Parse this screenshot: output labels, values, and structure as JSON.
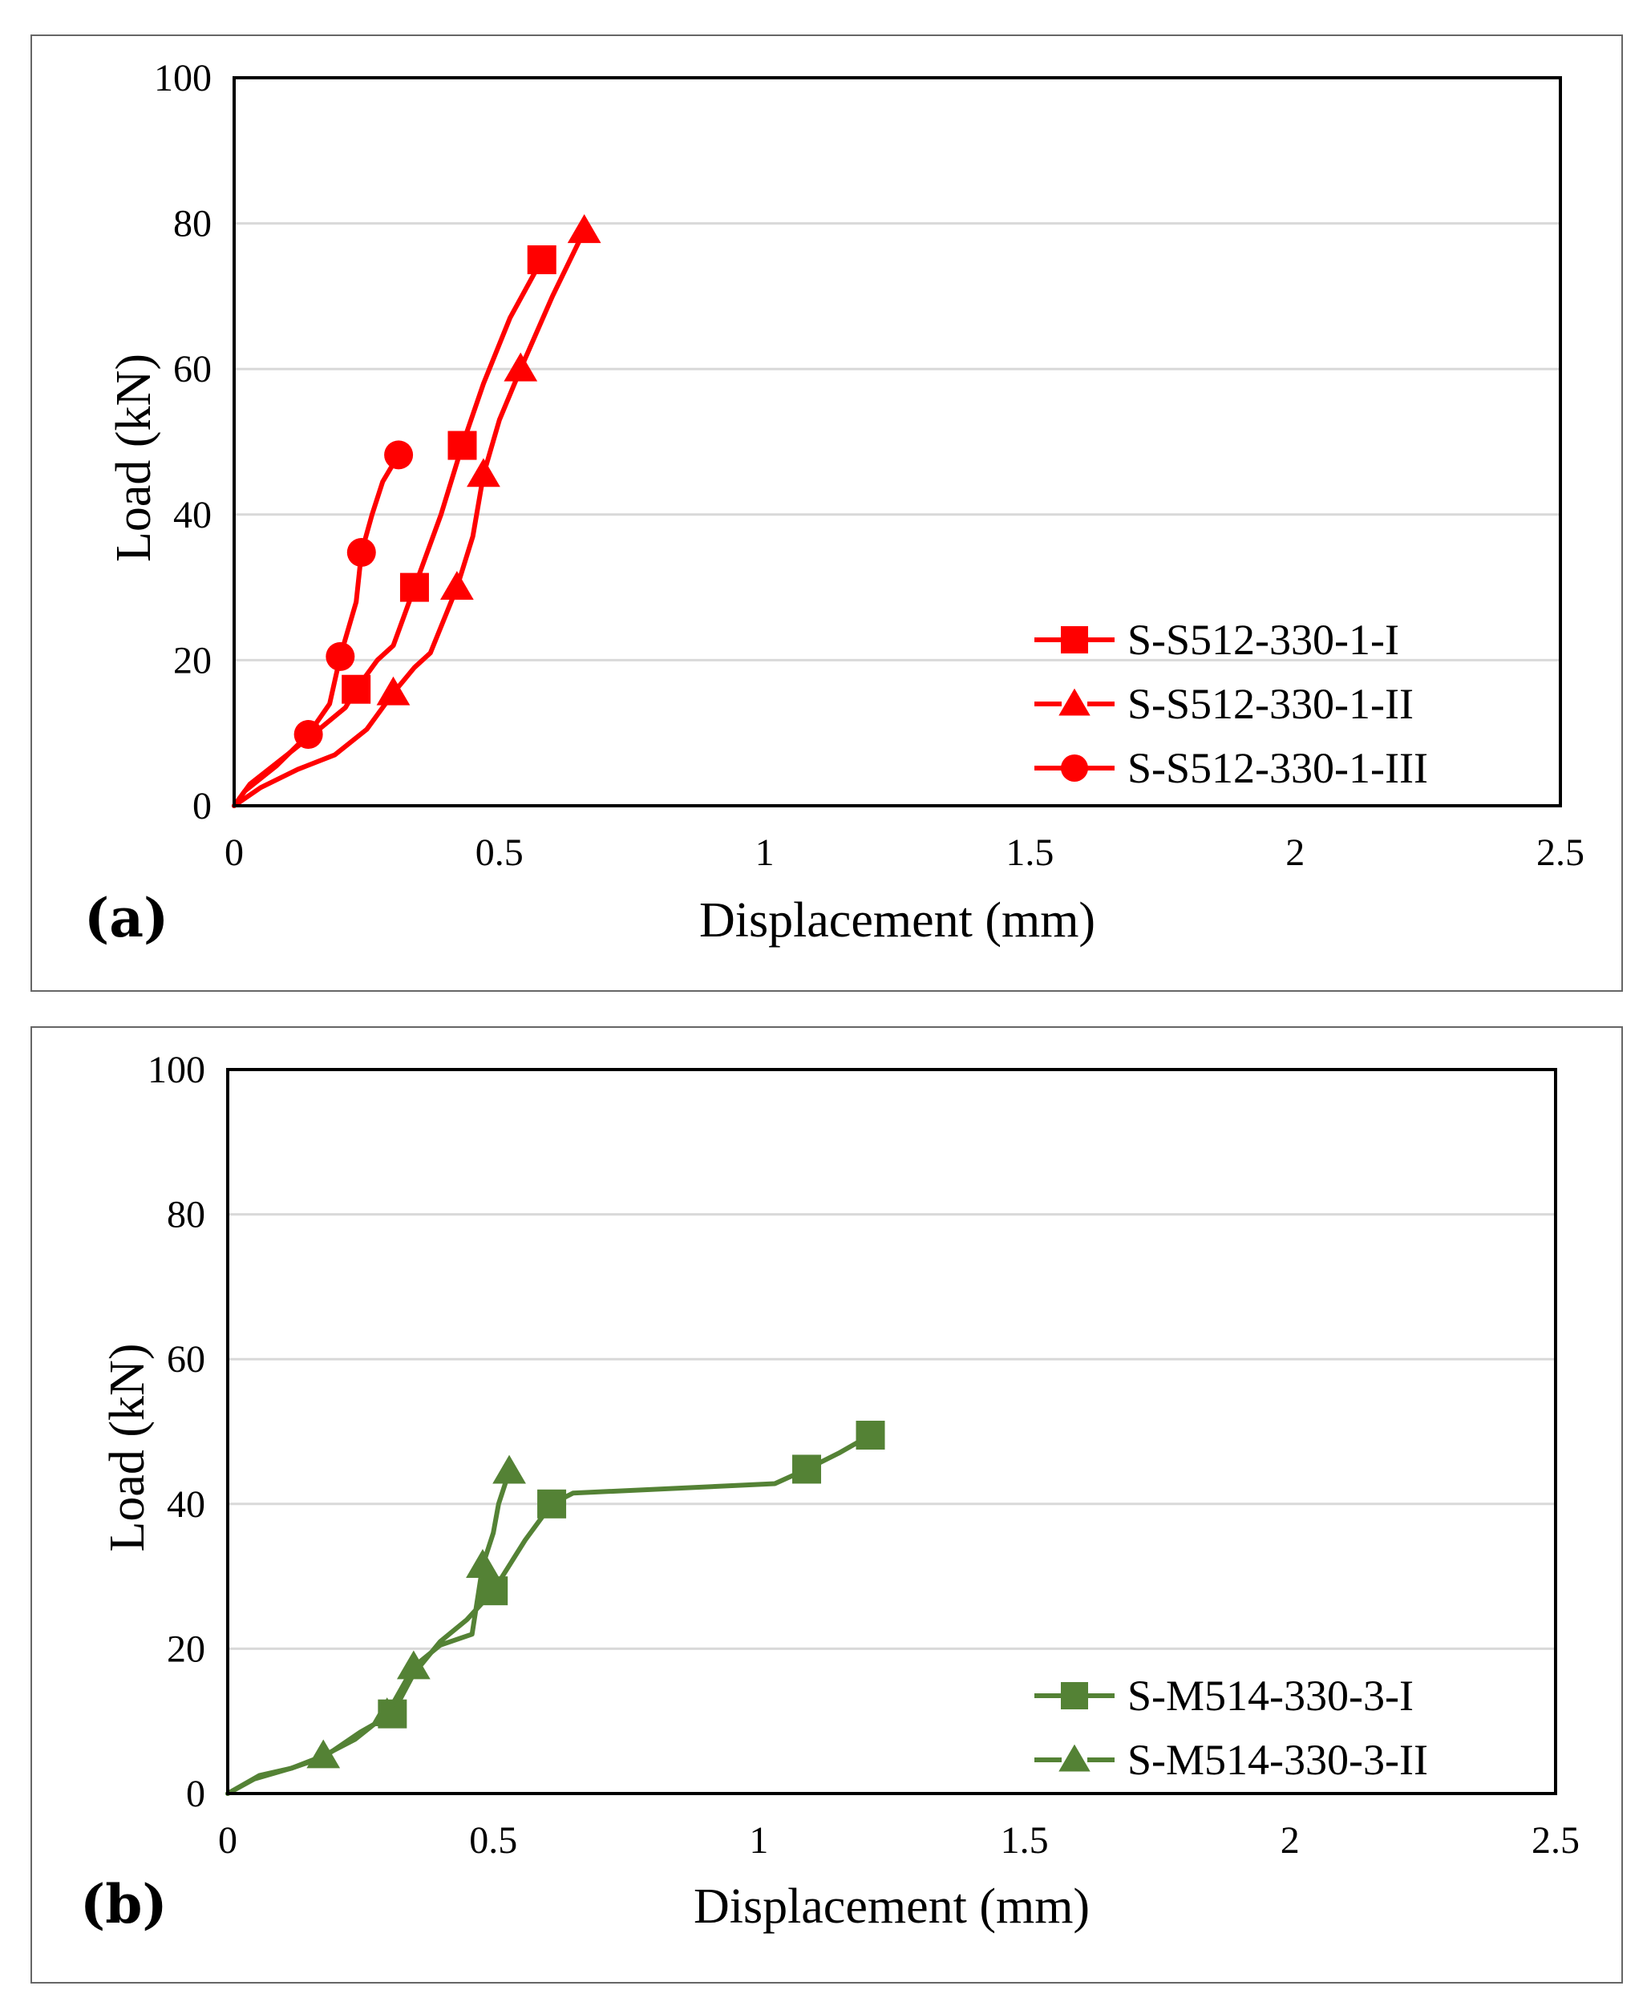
{
  "chart_data": [
    {
      "type": "line",
      "panel_label": "(a)",
      "xlabel": "Displacement (mm)",
      "ylabel": "Load (kN)",
      "xlim": [
        0,
        2.5
      ],
      "ylim": [
        0,
        100
      ],
      "x_ticks": [
        "0",
        "0.5",
        "1",
        "1.5",
        "2",
        "2.5"
      ],
      "y_ticks": [
        "0",
        "20",
        "40",
        "60",
        "80",
        "100"
      ],
      "x_tick_values": [
        0,
        0.5,
        1,
        1.5,
        2,
        2.5
      ],
      "y_tick_values": [
        0,
        20,
        40,
        60,
        80,
        100
      ],
      "grid": "horizontal",
      "legend_position": "bottom-right",
      "color": "#ff0000",
      "series": [
        {
          "name": "S-S512-330-1-I",
          "marker": "square",
          "points": [
            [
              0,
              0
            ],
            [
              0.03,
              3
            ],
            [
              0.1,
              7
            ],
            [
              0.16,
              10.5
            ],
            [
              0.21,
              13.5
            ],
            [
              0.23,
              16
            ],
            [
              0.27,
              20
            ],
            [
              0.3,
              22
            ],
            [
              0.34,
              30
            ],
            [
              0.39,
              40
            ],
            [
              0.43,
              49.5
            ],
            [
              0.47,
              58
            ],
            [
              0.52,
              67
            ],
            [
              0.58,
              75
            ]
          ],
          "marked": [
            [
              0.23,
              16
            ],
            [
              0.34,
              30
            ],
            [
              0.43,
              49.5
            ],
            [
              0.58,
              75
            ]
          ]
        },
        {
          "name": "S-S512-330-1-II",
          "marker": "triangle",
          "points": [
            [
              0,
              0
            ],
            [
              0.05,
              2.5
            ],
            [
              0.12,
              5
            ],
            [
              0.19,
              7
            ],
            [
              0.25,
              10.5
            ],
            [
              0.3,
              15.5
            ],
            [
              0.34,
              19
            ],
            [
              0.37,
              21
            ],
            [
              0.42,
              30
            ],
            [
              0.45,
              37
            ],
            [
              0.47,
              45.5
            ],
            [
              0.5,
              53
            ],
            [
              0.54,
              60
            ],
            [
              0.6,
              70
            ],
            [
              0.66,
              79
            ]
          ],
          "marked": [
            [
              0.3,
              15.5
            ],
            [
              0.42,
              30
            ],
            [
              0.47,
              45.5
            ],
            [
              0.54,
              60
            ],
            [
              0.66,
              79
            ]
          ]
        },
        {
          "name": "S-S512-330-1-III",
          "marker": "circle",
          "points": [
            [
              0,
              0
            ],
            [
              0.02,
              2
            ],
            [
              0.08,
              5.5
            ],
            [
              0.14,
              9.8
            ],
            [
              0.18,
              14
            ],
            [
              0.2,
              20.5
            ],
            [
              0.23,
              28
            ],
            [
              0.24,
              34.8
            ],
            [
              0.26,
              40
            ],
            [
              0.28,
              44.5
            ],
            [
              0.31,
              48.2
            ]
          ],
          "marked": [
            [
              0.14,
              9.8
            ],
            [
              0.2,
              20.5
            ],
            [
              0.24,
              34.8
            ],
            [
              0.31,
              48.2
            ]
          ]
        }
      ]
    },
    {
      "type": "line",
      "panel_label": "(b)",
      "xlabel": "Displacement (mm)",
      "ylabel": "Load (kN)",
      "xlim": [
        0,
        2.5
      ],
      "ylim": [
        0,
        100
      ],
      "x_ticks": [
        "0",
        "0.5",
        "1",
        "1.5",
        "2",
        "2.5"
      ],
      "y_ticks": [
        "0",
        "20",
        "40",
        "60",
        "80",
        "100"
      ],
      "x_tick_values": [
        0,
        0.5,
        1,
        1.5,
        2,
        2.5
      ],
      "y_tick_values": [
        0,
        20,
        40,
        60,
        80,
        100
      ],
      "grid": "horizontal",
      "legend_position": "bottom-right",
      "color": "#548235",
      "series": [
        {
          "name": "S-M514-330-3-I",
          "marker": "square",
          "points": [
            [
              0,
              0
            ],
            [
              0.05,
              2
            ],
            [
              0.12,
              3.5
            ],
            [
              0.18,
              5
            ],
            [
              0.25,
              8.5
            ],
            [
              0.31,
              11
            ],
            [
              0.35,
              16.5
            ],
            [
              0.4,
              21
            ],
            [
              0.45,
              24
            ],
            [
              0.5,
              28
            ],
            [
              0.56,
              35
            ],
            [
              0.61,
              40
            ],
            [
              0.65,
              41.5
            ],
            [
              1.03,
              42.8
            ],
            [
              1.09,
              44.8
            ],
            [
              1.15,
              47
            ],
            [
              1.21,
              49.5
            ]
          ],
          "marked": [
            [
              0.31,
              11
            ],
            [
              0.5,
              28
            ],
            [
              0.61,
              40
            ],
            [
              1.09,
              44.8
            ],
            [
              1.21,
              49.5
            ]
          ]
        },
        {
          "name": "S-M514-330-3-II",
          "marker": "triangle",
          "points": [
            [
              0,
              0
            ],
            [
              0.06,
              2.5
            ],
            [
              0.12,
              3.5
            ],
            [
              0.18,
              5.2
            ],
            [
              0.24,
              7.5
            ],
            [
              0.3,
              11
            ],
            [
              0.35,
              17.5
            ],
            [
              0.4,
              20.5
            ],
            [
              0.46,
              22
            ],
            [
              0.48,
              31.5
            ],
            [
              0.5,
              36
            ],
            [
              0.51,
              40
            ],
            [
              0.53,
              44.5
            ]
          ],
          "marked": [
            [
              0.18,
              5.2
            ],
            [
              0.3,
              11
            ],
            [
              0.35,
              17.5
            ],
            [
              0.48,
              31.5
            ],
            [
              0.53,
              44.5
            ]
          ]
        }
      ]
    }
  ]
}
